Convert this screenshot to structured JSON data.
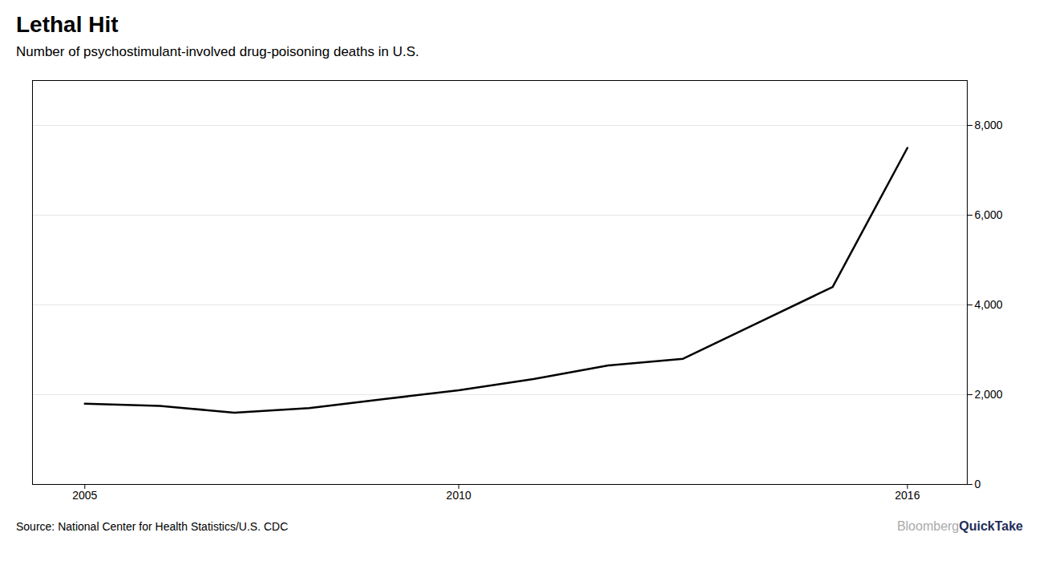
{
  "chart_data": {
    "type": "line",
    "title": "Lethal Hit",
    "subtitle": "Number of psychostimulant-involved drug-poisoning deaths in U.S.",
    "source": "Source: National Center for Health Statistics/U.S. CDC",
    "annotations": [
      {
        "text": "Bloomberg",
        "color": "#aaaaaa"
      },
      {
        "text": "QuickTake",
        "color": "#1e2d5a"
      }
    ],
    "x": [
      2005,
      2006,
      2007,
      2008,
      2009,
      2010,
      2011,
      2012,
      2013,
      2014,
      2015,
      2016
    ],
    "values": [
      1800,
      1750,
      1600,
      1700,
      1900,
      2100,
      2350,
      2650,
      2800,
      3600,
      4400,
      7500
    ],
    "color": "#000000",
    "xlim": [
      2004.3,
      2016.8
    ],
    "xticks": [
      2005,
      2010,
      2016
    ],
    "ylim": [
      0,
      9000
    ],
    "yticks": [
      0,
      {
        "value": 2000,
        "label": "2,000"
      },
      {
        "value": 4000,
        "label": "4,000"
      },
      {
        "value": 6000,
        "label": "6,000"
      },
      {
        "value": 8000,
        "label": "8,000"
      }
    ],
    "grid": true
  }
}
